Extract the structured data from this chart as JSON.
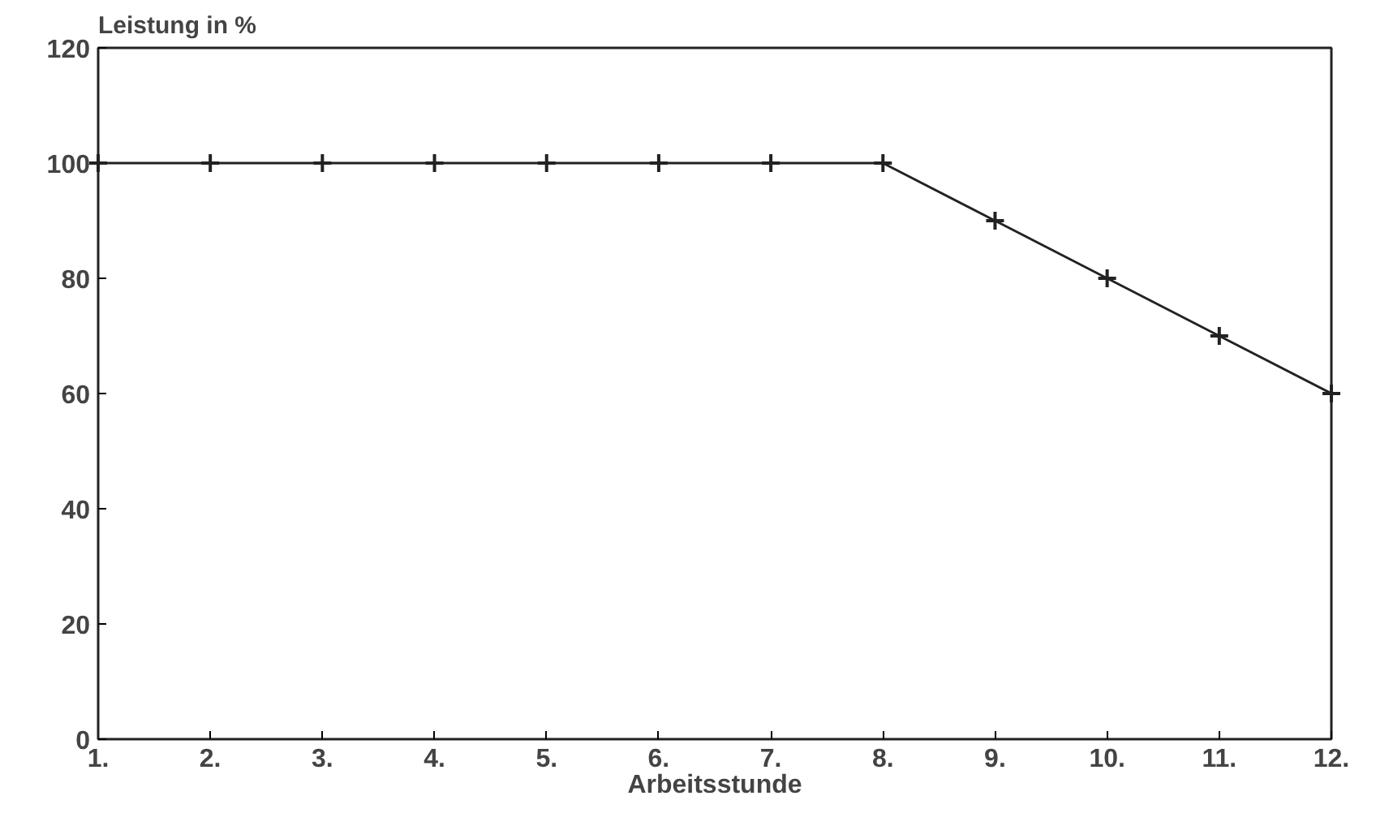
{
  "chart_data": {
    "type": "line",
    "xlabel": "Arbeitsstunde",
    "ylabel": "Leistung in %",
    "x": [
      1,
      2,
      3,
      4,
      5,
      6,
      7,
      8,
      9,
      10,
      11,
      12
    ],
    "series": [
      {
        "color": "#222222",
        "values": [
          100,
          100,
          100,
          100,
          100,
          100,
          100,
          100,
          90,
          80,
          70,
          60
        ]
      }
    ],
    "xlim": [
      1,
      12
    ],
    "xticks": [
      {
        "value": 1,
        "label": "1."
      },
      {
        "value": 2,
        "label": "2."
      },
      {
        "value": 3,
        "label": "3."
      },
      {
        "value": 4,
        "label": "4."
      },
      {
        "value": 5,
        "label": "5."
      },
      {
        "value": 6,
        "label": "6."
      },
      {
        "value": 7,
        "label": "7."
      },
      {
        "value": 8,
        "label": "8."
      },
      {
        "value": 9,
        "label": "9."
      },
      {
        "value": 10,
        "label": "10."
      },
      {
        "value": 11,
        "label": "11."
      },
      {
        "value": 12,
        "label": "12."
      }
    ],
    "ylim": [
      0,
      120
    ],
    "yticks": [
      0,
      20,
      40,
      60,
      80,
      100,
      120
    ],
    "grid": false,
    "marker": "cross",
    "line_style": "solid"
  }
}
